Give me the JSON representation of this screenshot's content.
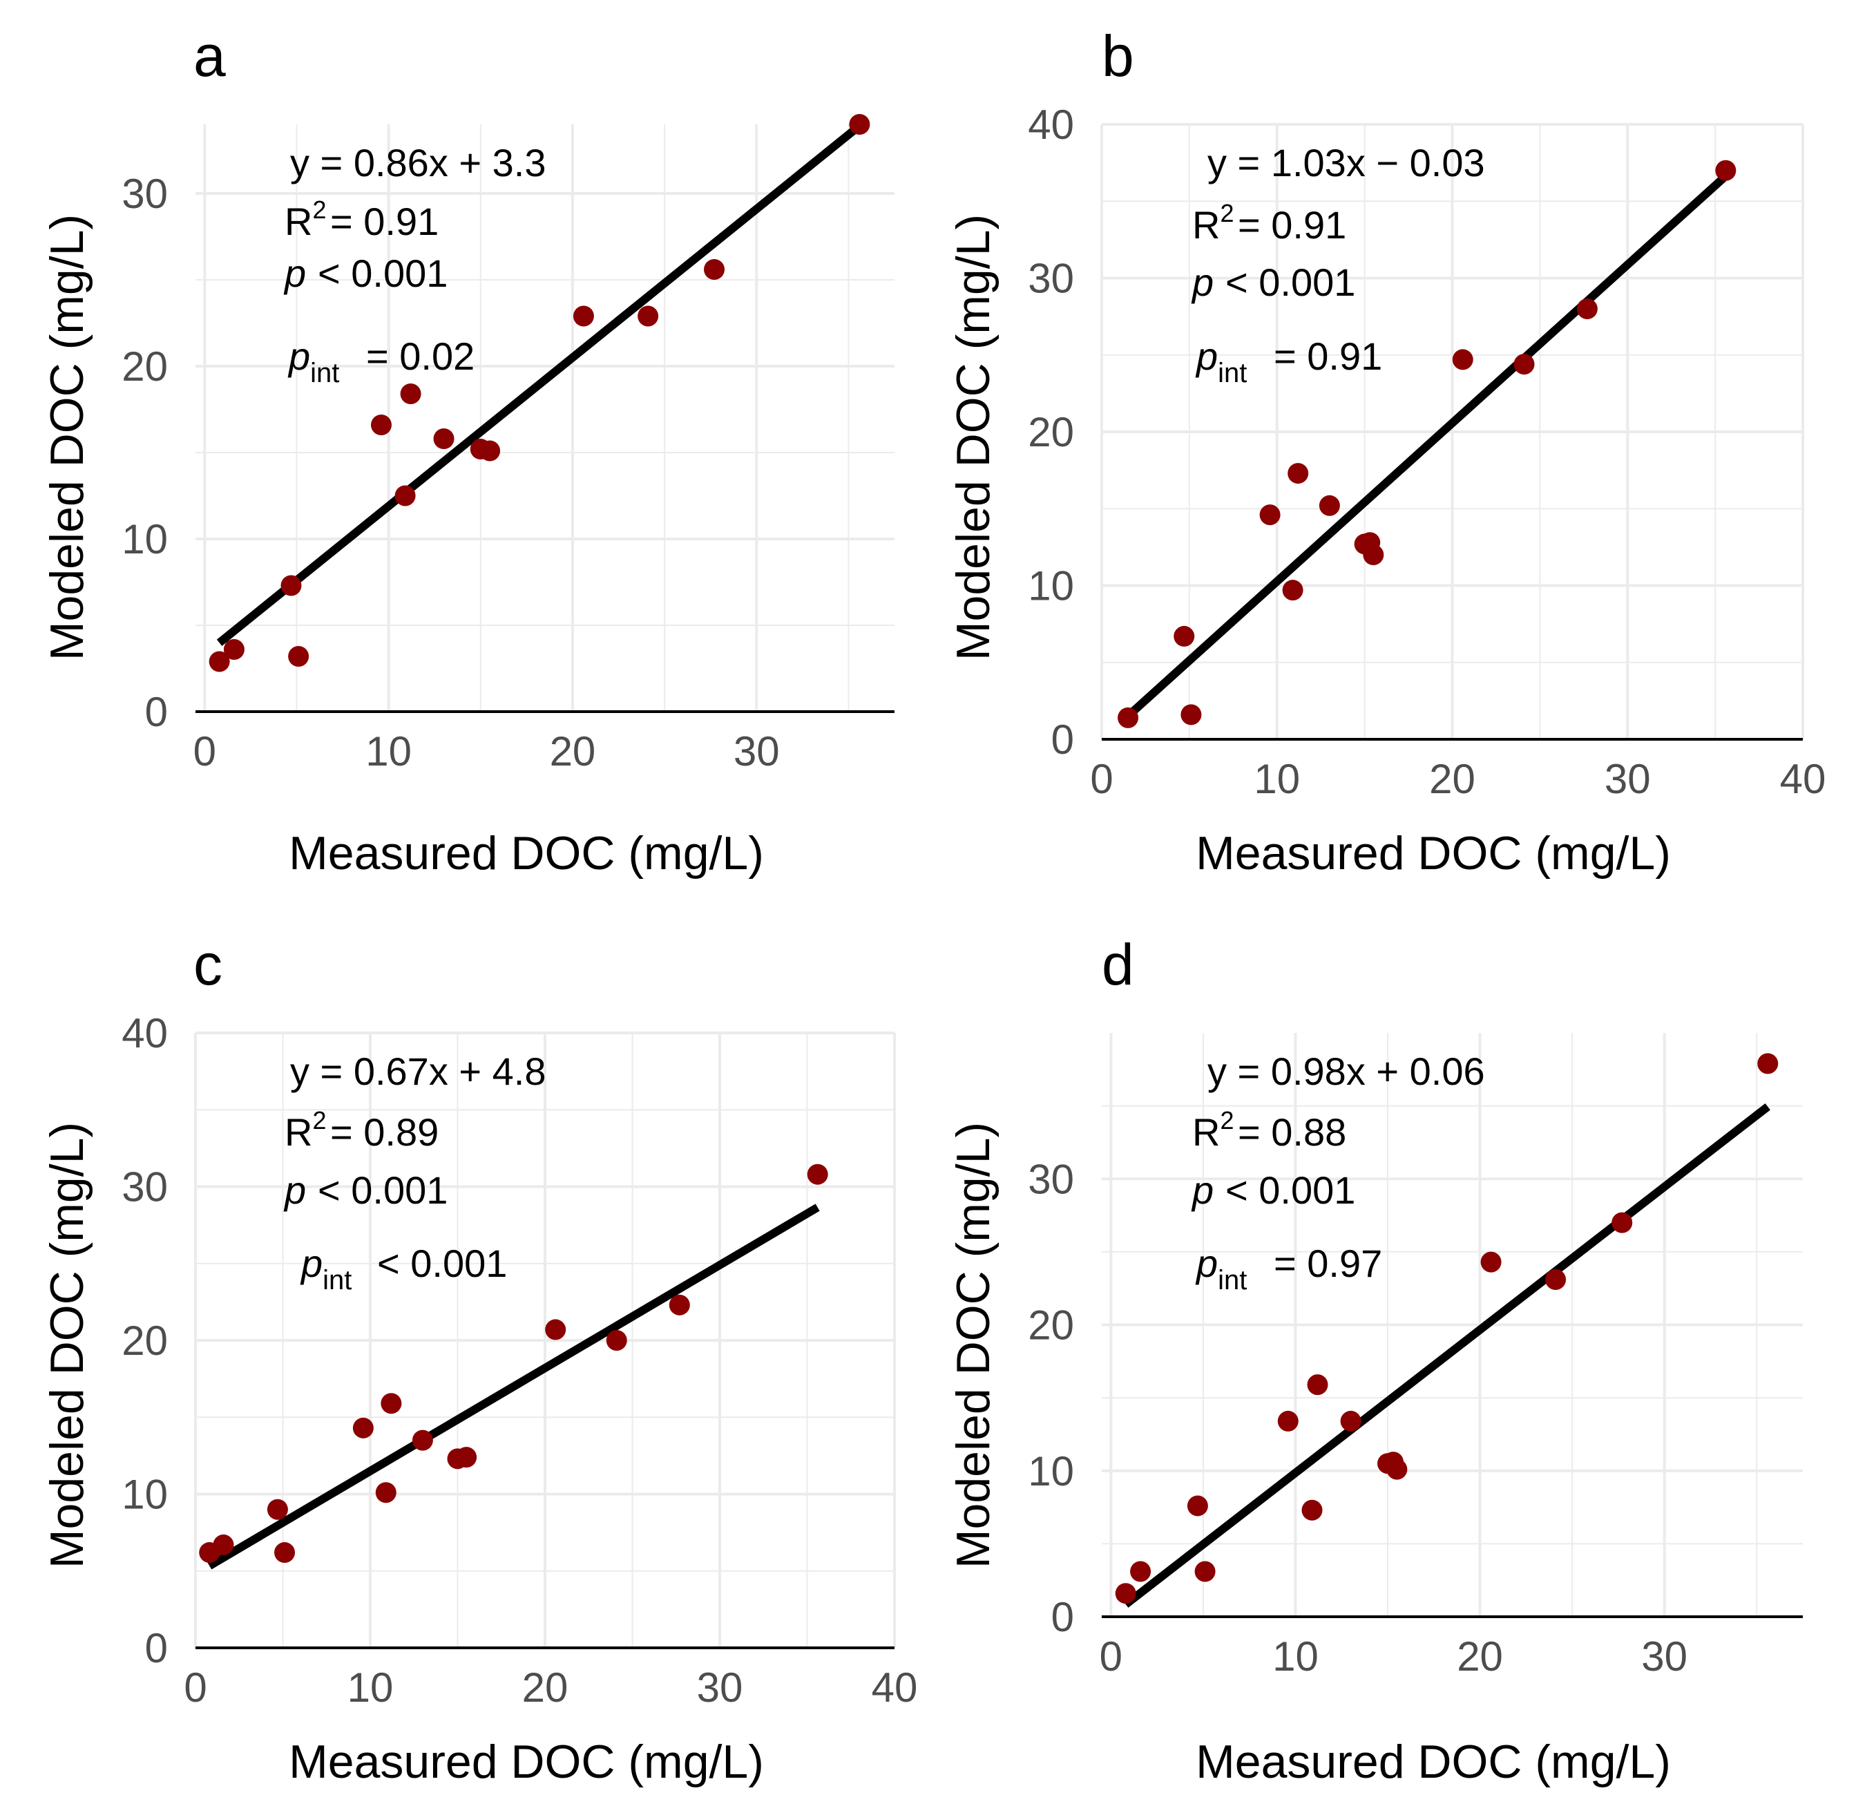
{
  "figure": {
    "x_label": "Measured DOC (mg/L)",
    "y_label": "Modeled DOC (mg/L)",
    "point_color": "#8b0000",
    "line_color": "#000000",
    "grid_color": "#ebebeb",
    "tick_text_color": "#4d4d4d"
  },
  "chart_data": [
    {
      "panel": "a",
      "type": "scatter",
      "xlabel": "Measured DOC (mg/L)",
      "ylabel": "Modeled DOC (mg/L)",
      "xlim": [
        -0.5,
        37.5
      ],
      "ylim": [
        0,
        34
      ],
      "xticks": [
        0,
        10,
        20,
        30
      ],
      "yticks": [
        0,
        10,
        20,
        30
      ],
      "x": [
        0.8,
        1.6,
        4.7,
        5.1,
        9.6,
        10.9,
        11.2,
        13.0,
        15.0,
        15.5,
        20.6,
        24.1,
        27.7,
        35.6
      ],
      "y": [
        2.9,
        3.6,
        7.3,
        3.2,
        16.6,
        12.5,
        18.4,
        15.8,
        15.2,
        15.1,
        22.9,
        22.9,
        25.6,
        34.0
      ],
      "fit": {
        "slope": 0.86,
        "intercept": 3.3,
        "x_range": [
          0.8,
          35.6
        ]
      },
      "annotations": {
        "eq": "y = 0.86x + 3.3",
        "r2_value": "= 0.91",
        "p_value": "< 0.001",
        "pint_value": "= 0.02"
      }
    },
    {
      "panel": "b",
      "type": "scatter",
      "xlabel": "Measured DOC (mg/L)",
      "ylabel": "Modeled DOC (mg/L)",
      "xlim": [
        0,
        40
      ],
      "ylim": [
        0,
        40
      ],
      "xticks": [
        0,
        10,
        20,
        30,
        40
      ],
      "yticks": [
        0,
        10,
        20,
        30,
        40
      ],
      "x": [
        1.5,
        4.7,
        5.1,
        9.6,
        10.9,
        11.2,
        13.0,
        15.0,
        15.3,
        15.5,
        20.6,
        24.1,
        27.7,
        35.6
      ],
      "y": [
        1.4,
        6.7,
        1.6,
        14.6,
        9.7,
        17.3,
        15.2,
        12.7,
        12.8,
        12.0,
        24.7,
        24.4,
        28.0,
        37.0
      ],
      "fit": {
        "slope": 1.03,
        "intercept": -0.03,
        "x_range": [
          1.5,
          35.6
        ]
      },
      "annotations": {
        "eq": "y = 1.03x − 0.03",
        "r2_value": "= 0.91",
        "p_value": "< 0.001",
        "pint_value": "= 0.91"
      }
    },
    {
      "panel": "c",
      "type": "scatter",
      "xlabel": "Measured DOC (mg/L)",
      "ylabel": "Modeled DOC (mg/L)",
      "xlim": [
        0,
        40
      ],
      "ylim": [
        0,
        40
      ],
      "xticks": [
        0,
        10,
        20,
        30,
        40
      ],
      "yticks": [
        0,
        10,
        20,
        30,
        40
      ],
      "x": [
        0.8,
        1.6,
        4.7,
        5.1,
        9.6,
        10.9,
        11.2,
        13.0,
        15.0,
        15.5,
        20.6,
        24.1,
        27.7,
        35.6
      ],
      "y": [
        6.2,
        6.7,
        9.0,
        6.2,
        14.3,
        10.1,
        15.9,
        13.5,
        12.3,
        12.4,
        20.7,
        20.0,
        22.3,
        30.8
      ],
      "fit": {
        "slope": 0.67,
        "intercept": 4.8,
        "x_range": [
          0.8,
          35.6
        ]
      },
      "annotations": {
        "eq": "y = 0.67x + 4.8",
        "r2_value": "= 0.89",
        "p_value": "< 0.001",
        "pint_value": "< 0.001"
      }
    },
    {
      "panel": "d",
      "type": "scatter",
      "xlabel": "Measured DOC (mg/L)",
      "ylabel": "Modeled DOC (mg/L)",
      "xlim": [
        -0.5,
        37.5
      ],
      "ylim": [
        0,
        40
      ],
      "xticks": [
        0,
        10,
        20,
        30
      ],
      "yticks": [
        0,
        10,
        20,
        30
      ],
      "x": [
        0.8,
        1.6,
        4.7,
        5.1,
        9.6,
        10.9,
        11.2,
        13.0,
        15.0,
        15.3,
        15.5,
        20.6,
        24.1,
        27.7,
        35.6
      ],
      "y": [
        1.6,
        3.1,
        7.6,
        3.1,
        13.4,
        7.3,
        15.9,
        13.4,
        10.5,
        10.6,
        10.1,
        24.3,
        23.1,
        27.0,
        37.9
      ],
      "fit": {
        "slope": 0.98,
        "intercept": 0.06,
        "x_range": [
          0.8,
          35.6
        ]
      },
      "annotations": {
        "eq": "y = 0.98x + 0.06",
        "r2_value": "= 0.88",
        "p_value": "< 0.001",
        "pint_value": "= 0.97"
      }
    }
  ]
}
